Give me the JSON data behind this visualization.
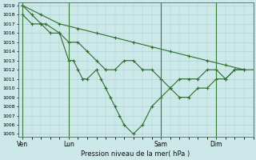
{
  "background_color": "#cce8e8",
  "grid_color": "#a8d0d0",
  "line_color": "#2d6e2d",
  "marker_color": "#2d6e2d",
  "xlabel": "Pression niveau de la mer( hPa )",
  "ylim_low": 1005,
  "ylim_high": 1019,
  "xtick_labels": [
    "Ven",
    "Lun",
    "Sam",
    "Dim"
  ],
  "xtick_positions": [
    0,
    10,
    30,
    42
  ],
  "total_points": 52,
  "series_gradual_x": [
    0,
    4,
    8,
    12,
    16,
    20,
    24,
    28,
    32,
    36,
    40,
    44,
    48,
    52
  ],
  "series_gradual_y": [
    1019,
    1018,
    1017,
    1016.5,
    1016,
    1015.5,
    1015,
    1014.5,
    1014,
    1013.5,
    1013,
    1012.5,
    1012,
    1012
  ],
  "series_medium_x": [
    0,
    2,
    4,
    6,
    8,
    10,
    12,
    14,
    16,
    18,
    20,
    22,
    24,
    26,
    28,
    30,
    32,
    34,
    36,
    38,
    40,
    42,
    44,
    46,
    48
  ],
  "series_medium_y": [
    1018,
    1017,
    1017,
    1016,
    1016,
    1015,
    1015,
    1014,
    1013,
    1012,
    1012,
    1013,
    1013,
    1012,
    1012,
    1011,
    1010,
    1009,
    1009,
    1010,
    1010,
    1011,
    1011,
    1012,
    1012
  ],
  "series_sharp_x": [
    0,
    2,
    4,
    5,
    8,
    10,
    11,
    12,
    13,
    14,
    16,
    17,
    18,
    19,
    20,
    21,
    22,
    24,
    26,
    28,
    30,
    32,
    34,
    36,
    38,
    40,
    42,
    44,
    46,
    48
  ],
  "series_sharp_y": [
    1019,
    1018,
    1017,
    1017,
    1016,
    1013,
    1013,
    1012,
    1011,
    1011,
    1012,
    1011,
    1010,
    1009,
    1008,
    1007,
    1006,
    1005,
    1006,
    1008,
    1009,
    1010,
    1011,
    1011,
    1011,
    1012,
    1012,
    1011,
    1012,
    1012
  ]
}
